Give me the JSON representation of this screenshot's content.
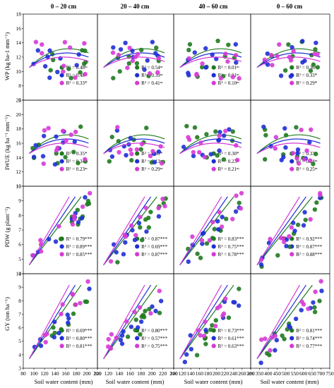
{
  "columns": [
    "0 – 20 cm",
    "20 – 40 cm",
    "40 – 60 cm",
    "0 – 60 cm"
  ],
  "xlabel": "Soil water content (mm)",
  "colors": {
    "green": "#1f7a1f",
    "blue": "#1f2fd6",
    "magenta": "#d63ad6"
  },
  "rows": [
    {
      "ylabel": "WP (kg ha-1 mm⁻¹)",
      "ylim": [
        6,
        18
      ],
      "yticks": [
        6,
        8,
        10,
        12,
        14,
        16,
        18
      ]
    },
    {
      "ylabel": "IWUE (kg ha⁻¹ mm⁻¹)",
      "ylim": [
        10,
        22
      ],
      "yticks": [
        10,
        12,
        14,
        16,
        18,
        20,
        22
      ]
    },
    {
      "ylabel": "PDW (g plant⁻¹)",
      "ylim": [
        4,
        10
      ],
      "yticks": [
        4,
        5,
        6,
        7,
        8,
        9,
        10
      ]
    },
    {
      "ylabel": "GY (ton ha⁻¹)",
      "ylim": [
        3,
        10
      ],
      "yticks": [
        3,
        4,
        5,
        6,
        7,
        8,
        9,
        10
      ]
    }
  ],
  "xaxes": [
    {
      "ticks": [
        "80",
        "100",
        "120",
        "140",
        "160",
        "180",
        "200",
        "220"
      ],
      "xlim": [
        80,
        220
      ]
    },
    {
      "ticks": [
        "100",
        "120",
        "140",
        "160",
        "180",
        "200",
        "220",
        "240"
      ],
      "xlim": [
        100,
        240
      ]
    },
    {
      "ticks": [
        "100",
        "120",
        "140",
        "160",
        "180",
        "200",
        "220",
        "240",
        "260",
        "280"
      ],
      "xlim": [
        100,
        280
      ]
    },
    {
      "ticks": [
        "300",
        "350",
        "400",
        "450",
        "500",
        "550",
        "600",
        "650",
        "700",
        "750"
      ],
      "xlim": [
        300,
        750
      ]
    }
  ],
  "chart_data": [
    {
      "type": "scatter",
      "row": 0,
      "col": 0,
      "legend": [
        "R² = 0.48ⁿˢ",
        "R² = 0.48ⁿˢ",
        "R² = 0.33*"
      ]
    },
    {
      "type": "scatter",
      "row": 0,
      "col": 1,
      "legend": [
        "R² = 0.54ⁿˢ",
        "R² = 0.39ⁿˢ",
        "R² = 0.41ⁿˢ"
      ]
    },
    {
      "type": "scatter",
      "row": 0,
      "col": 2,
      "legend": [
        "R² = 0.01ⁿˢ",
        "R² = 0.01ⁿˢ",
        "R² = 0.10ⁿˢ"
      ]
    },
    {
      "type": "scatter",
      "row": 0,
      "col": 3,
      "legend": [
        "R² = 0.36ⁿˢ",
        "R² = 0.33*",
        "R² = 0.29*"
      ]
    },
    {
      "type": "scatter",
      "row": 1,
      "col": 0,
      "legend": [
        "R² = 0.35*",
        "R² = 0.34*",
        "R² = 0.23ⁿˢ"
      ]
    },
    {
      "type": "scatter",
      "row": 1,
      "col": 1,
      "legend": [
        "R² = 0.35*",
        "R² = 0.13ⁿˢ",
        "R² = 0.29ⁿˢ"
      ]
    },
    {
      "type": "scatter",
      "row": 1,
      "col": 2,
      "legend": [
        "R² = 0.30*",
        "R² = 0.23ⁿˢ",
        "R² = 0.21ⁿˢ"
      ]
    },
    {
      "type": "scatter",
      "row": 1,
      "col": 3,
      "legend": [
        "R² = 0.33*",
        "R² = 0.24ⁿˢ",
        "R² = 0.25ⁿˢ"
      ]
    },
    {
      "type": "scatter",
      "row": 2,
      "col": 0,
      "legend": [
        "R² = 0.79***",
        "R² = 0.89***",
        "R² = 0.85***"
      ]
    },
    {
      "type": "scatter",
      "row": 2,
      "col": 1,
      "legend": [
        "R² = 0.87***",
        "R² = 0.69***",
        "R² = 0.87***"
      ]
    },
    {
      "type": "scatter",
      "row": 2,
      "col": 2,
      "legend": [
        "R² = 0.83***",
        "R² = 0.75***",
        "R² = 0.78***"
      ]
    },
    {
      "type": "scatter",
      "row": 2,
      "col": 3,
      "legend": [
        "R² = 0.92***",
        "R² = 0.87***",
        "R² = 0.88***"
      ]
    },
    {
      "type": "scatter",
      "row": 3,
      "col": 0,
      "legend": [
        "R² = 0.69***",
        "R² = 0.80***",
        "R² = 0.81***"
      ]
    },
    {
      "type": "scatter",
      "row": 3,
      "col": 1,
      "legend": [
        "R² = 0.80***",
        "R² = 0.57***",
        "R² = 0.75***"
      ]
    },
    {
      "type": "scatter",
      "row": 3,
      "col": 2,
      "legend": [
        "R² = 0.73***",
        "R² = 0.61***",
        "R² = 0.63***"
      ]
    },
    {
      "type": "scatter",
      "row": 3,
      "col": 3,
      "legend": [
        "R² = 0.81***",
        "R² = 0.74***",
        "R² = 0.77***"
      ]
    }
  ]
}
